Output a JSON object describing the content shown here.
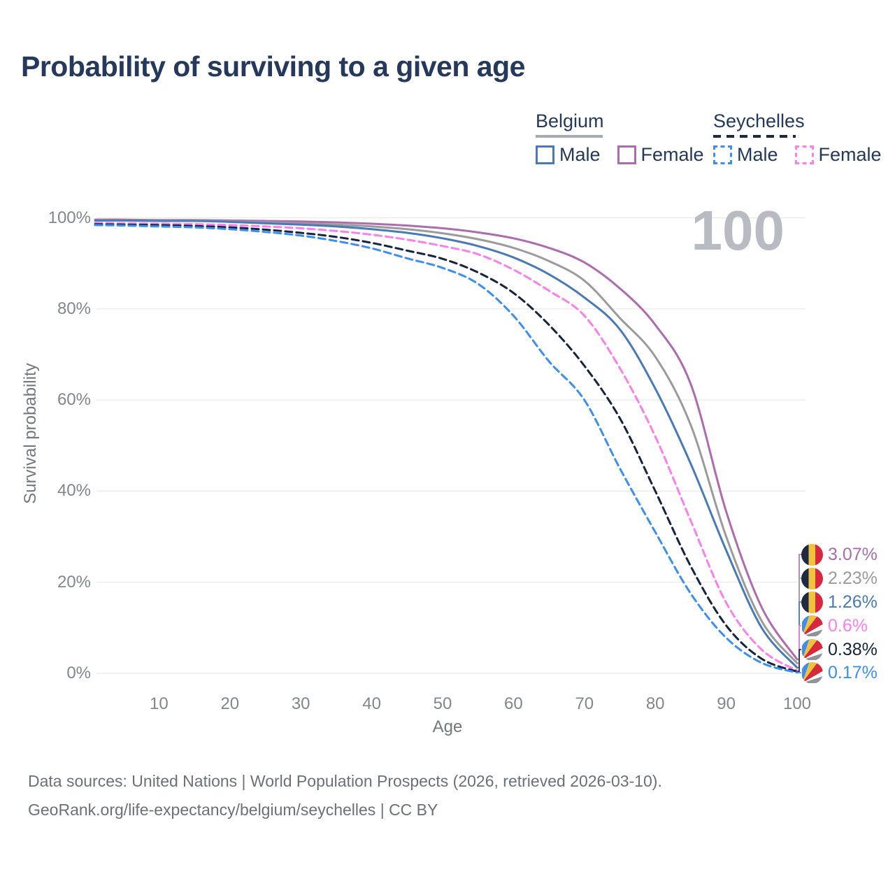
{
  "title": "Probability of surviving to a given age",
  "watermark": "100",
  "legend": {
    "groups": [
      {
        "country": "Belgium",
        "line_style": "solid",
        "underline_color": "#a7abb0",
        "items": [
          {
            "label": "Male",
            "color": "#4a7ab5",
            "style": "solid"
          },
          {
            "label": "Female",
            "color": "#ab6cad",
            "style": "solid"
          }
        ]
      },
      {
        "country": "Seychelles",
        "line_style": "dashed",
        "underline_color": "#1e2a44",
        "items": [
          {
            "label": "Male",
            "color": "#3d8ef0",
            "style": "dashed"
          },
          {
            "label": "Female",
            "color": "#fb80e8",
            "style": "dashed"
          }
        ]
      }
    ]
  },
  "axes": {
    "x": {
      "label": "Age",
      "ticks": [
        "10",
        "20",
        "30",
        "40",
        "50",
        "60",
        "70",
        "80",
        "90",
        "100"
      ],
      "min": 0,
      "max": 100
    },
    "y": {
      "label": "Survival probability",
      "ticks": [
        "100%",
        "80%",
        "60%",
        "40%",
        "20%",
        "0%"
      ],
      "min": 0,
      "max": 100,
      "gridlines": "horizontal"
    }
  },
  "end_labels": [
    {
      "flag": "belgium",
      "value": "3.07%",
      "color": "#a76fa9"
    },
    {
      "flag": "belgium",
      "value": "2.23%",
      "color": "#9b9b9b"
    },
    {
      "flag": "belgium",
      "value": "1.26%",
      "color": "#4a7ab5"
    },
    {
      "flag": "seychelles",
      "value": "0.6%",
      "color": "#fb80e8"
    },
    {
      "flag": "seychelles",
      "value": "0.38%",
      "color": "#16243f"
    },
    {
      "flag": "seychelles",
      "value": "0.17%",
      "color": "#3d8ef0"
    }
  ],
  "footer": {
    "line1": "Data sources: United Nations | World Population Prospects (2026, retrieved 2026-03-10).",
    "line2": "GeoRank.org/life-expectancy/belgium/seychelles | CC BY"
  },
  "chart_data": {
    "type": "line",
    "title": "Probability of surviving to a given age",
    "xlabel": "Age",
    "ylabel": "Survival probability",
    "xlim": [
      0,
      100
    ],
    "ylim": [
      0,
      100
    ],
    "grid": "horizontal",
    "legend_position": "top-right",
    "units": "percent",
    "x": [
      1,
      5,
      10,
      15,
      20,
      25,
      30,
      35,
      40,
      45,
      50,
      55,
      60,
      65,
      70,
      75,
      80,
      85,
      90,
      95,
      100
    ],
    "series": [
      {
        "name": "Belgium Female",
        "country": "Belgium",
        "sex": "Female",
        "style": "solid",
        "color": "#ac6cae",
        "end_label": "3.07%",
        "values": [
          99.6,
          99.6,
          99.5,
          99.5,
          99.4,
          99.3,
          99.2,
          99.0,
          98.7,
          98.3,
          97.7,
          96.8,
          95.5,
          93.4,
          90.2,
          84.5,
          76.5,
          63.5,
          35.5,
          14.5,
          3.07
        ]
      },
      {
        "name": "Belgium (both sexes)",
        "country": "Belgium",
        "sex": "Both",
        "style": "solid",
        "color": "#9b9b9b",
        "end_label": "2.23%",
        "values": [
          99.5,
          99.5,
          99.4,
          99.4,
          99.2,
          99.0,
          98.8,
          98.5,
          98.1,
          97.5,
          96.6,
          95.3,
          93.4,
          90.5,
          86.2,
          78.0,
          69.5,
          54.5,
          30.0,
          11.5,
          2.23
        ]
      },
      {
        "name": "Belgium Male",
        "country": "Belgium",
        "sex": "Male",
        "style": "solid",
        "color": "#4a7ab5",
        "end_label": "1.26%",
        "values": [
          99.4,
          99.4,
          99.3,
          99.3,
          99.1,
          98.8,
          98.5,
          98.1,
          97.5,
          96.7,
          95.5,
          93.8,
          91.3,
          87.6,
          82.5,
          75.5,
          62.5,
          46.0,
          27.0,
          10.0,
          1.26
        ]
      },
      {
        "name": "Seychelles Female",
        "country": "Seychelles",
        "sex": "Female",
        "style": "dashed",
        "color": "#fb80e8",
        "end_label": "0.6%",
        "values": [
          98.9,
          98.8,
          98.7,
          98.6,
          98.4,
          98.1,
          97.7,
          97.1,
          96.3,
          95.2,
          93.8,
          92.0,
          88.6,
          84.0,
          78.5,
          67.0,
          52.0,
          33.5,
          15.5,
          5.2,
          0.6
        ]
      },
      {
        "name": "Seychelles (both sexes)",
        "country": "Seychelles",
        "sex": "Both",
        "style": "dashed",
        "color": "#16243f",
        "end_label": "0.38%",
        "values": [
          98.6,
          98.5,
          98.4,
          98.2,
          97.9,
          97.4,
          96.7,
          95.8,
          94.5,
          92.8,
          91.0,
          88.0,
          83.5,
          76.5,
          67.5,
          56.0,
          40.0,
          23.5,
          10.5,
          3.2,
          0.38
        ]
      },
      {
        "name": "Seychelles Male",
        "country": "Seychelles",
        "sex": "Male",
        "style": "dashed",
        "color": "#3d8ef0",
        "end_label": "0.17%",
        "values": [
          98.4,
          98.3,
          98.1,
          97.9,
          97.5,
          96.9,
          96.1,
          94.9,
          93.3,
          91.1,
          89.0,
          85.5,
          78.5,
          68.5,
          60.0,
          45.0,
          31.0,
          17.5,
          7.8,
          2.3,
          0.17
        ]
      }
    ]
  }
}
